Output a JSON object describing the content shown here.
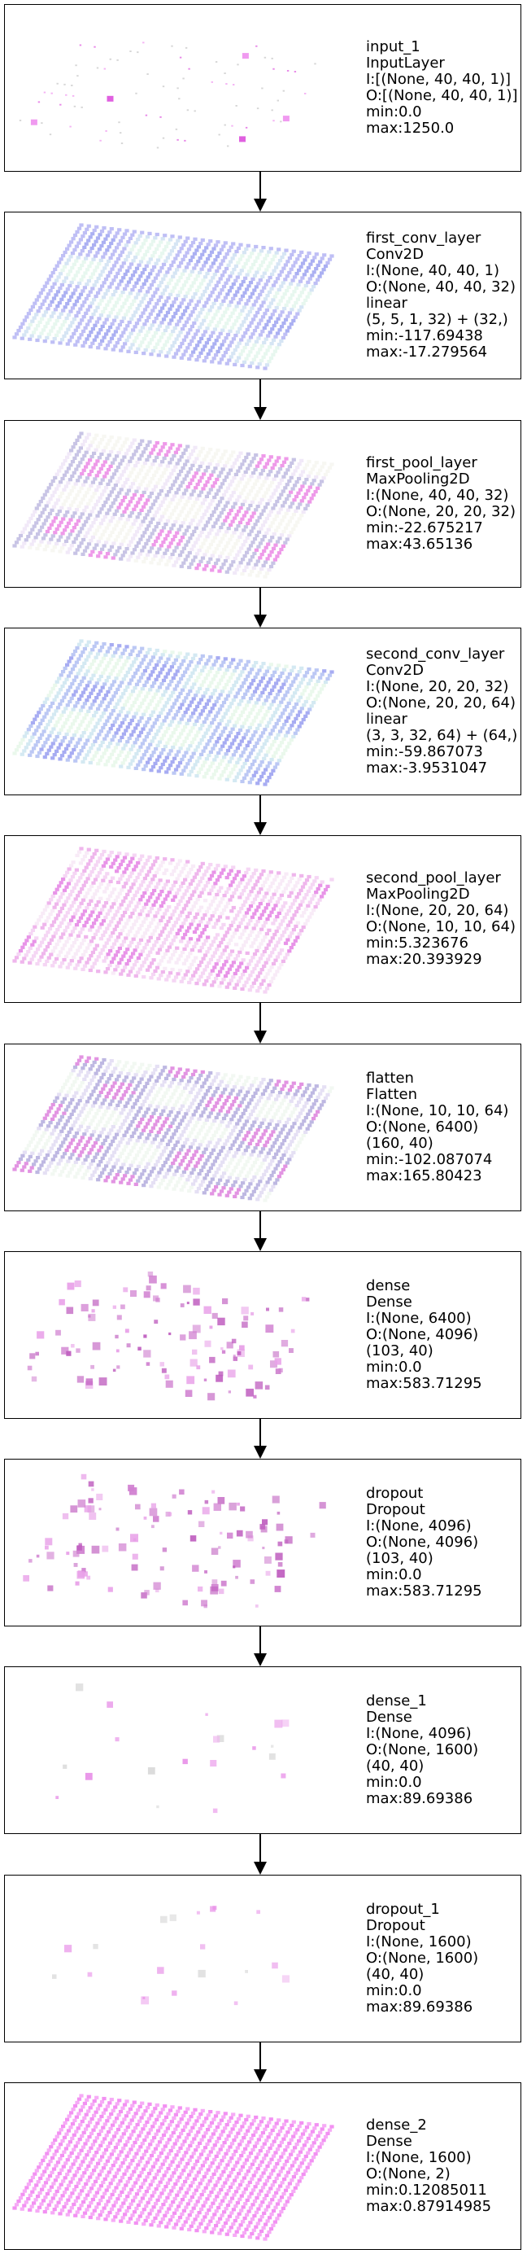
{
  "layers": [
    {
      "name": "input_1",
      "type": "InputLayer",
      "lines": [
        "I:[(None, 40, 40, 1)]",
        "O:[(None, 40, 40, 1)]"
      ],
      "min": "min:0.0",
      "max": "max:1250.0",
      "viz": {
        "style": "sparse-grid",
        "palette": [
          "#c8c8c8",
          "#f09af0",
          "#e060e0"
        ],
        "density": 0.18
      }
    },
    {
      "name": "first_conv_layer",
      "type": "Conv2D",
      "lines": [
        "I:(None, 40, 40, 1)",
        "O:(None, 40, 40, 32)",
        "linear",
        "(5, 5, 1, 32) + (32,)"
      ],
      "min": "min:-117.69438",
      "max": "max:-17.279564",
      "viz": {
        "style": "dense-grid",
        "palette": [
          "#a9a9f2",
          "#c8dcf0",
          "#dff4ea",
          "#8f95ee"
        ],
        "density": 1.0
      }
    },
    {
      "name": "first_pool_layer",
      "type": "MaxPooling2D",
      "lines": [
        "I:(None, 40, 40, 32)",
        "O:(None, 20, 20, 32)"
      ],
      "min": "min:-22.675217",
      "max": "max:43.65136",
      "viz": {
        "style": "dense-grid",
        "palette": [
          "#b5b0dc",
          "#ece2f6",
          "#f4f4ee",
          "#e878e2"
        ],
        "density": 1.0
      }
    },
    {
      "name": "second_conv_layer",
      "type": "Conv2D",
      "lines": [
        "I:(None, 20, 20, 32)",
        "O:(None, 20, 20, 64)",
        "linear",
        "(3, 3, 32, 64) + (64,)"
      ],
      "min": "min:-59.867073",
      "max": "max:-3.9531047",
      "viz": {
        "style": "dense-grid",
        "palette": [
          "#a6b6f0",
          "#c6e2ee",
          "#e3f6e6",
          "#8a90ee"
        ],
        "density": 1.0
      }
    },
    {
      "name": "second_pool_layer",
      "type": "MaxPooling2D",
      "lines": [
        "I:(None, 20, 20, 64)",
        "O:(None, 10, 10, 64)"
      ],
      "min": "min:5.323676",
      "max": "max:20.393929",
      "viz": {
        "style": "dense-grid",
        "palette": [
          "#f2c8f0",
          "#ea9ee6",
          "#f6e4f4",
          "#e070e0"
        ],
        "density": 0.96
      }
    },
    {
      "name": "flatten",
      "type": "Flatten",
      "lines": [
        "I:(None, 10, 10, 64)",
        "O:(None, 6400)",
        "(160, 40)"
      ],
      "min": "min:-102.087074",
      "max": "max:165.80423",
      "viz": {
        "style": "dense-grid",
        "palette": [
          "#a8a0d8",
          "#dcd6f0",
          "#eef6ee",
          "#d870d8"
        ],
        "density": 1.0
      }
    },
    {
      "name": "dense",
      "type": "Dense",
      "lines": [
        "I:(None, 6400)",
        "O:(None, 4096)",
        "(103, 40)"
      ],
      "min": "min:0.0",
      "max": "max:583.71295",
      "viz": {
        "style": "scatter",
        "palette": [
          "#c060c0",
          "#e8a0e8",
          "#d080d0"
        ],
        "count": 110
      }
    },
    {
      "name": "dropout",
      "type": "Dropout",
      "lines": [
        "I:(None, 4096)",
        "O:(None, 4096)",
        "(103, 40)"
      ],
      "min": "min:0.0",
      "max": "max:583.71295",
      "viz": {
        "style": "scatter",
        "palette": [
          "#c060c0",
          "#e8a0e8",
          "#d080d0"
        ],
        "count": 110
      }
    },
    {
      "name": "dense_1",
      "type": "Dense",
      "lines": [
        "I:(None, 4096)",
        "O:(None, 1600)",
        "(40, 40)"
      ],
      "min": "min:0.0",
      "max": "max:89.69386",
      "viz": {
        "style": "scatter",
        "palette": [
          "#d8d8d8",
          "#f0b8f0",
          "#e890e8"
        ],
        "count": 20
      }
    },
    {
      "name": "dropout_1",
      "type": "Dropout",
      "lines": [
        "I:(None, 1600)",
        "O:(None, 1600)",
        "(40, 40)"
      ],
      "min": "min:0.0",
      "max": "max:89.69386",
      "viz": {
        "style": "scatter",
        "palette": [
          "#d8d8d8",
          "#f0b8f0",
          "#e890e8"
        ],
        "count": 20
      }
    },
    {
      "name": "dense_2",
      "type": "Dense",
      "lines": [
        "I:(None, 1600)",
        "O:(None, 2)"
      ],
      "min": "min:0.12085011",
      "max": "max:0.87914985",
      "viz": {
        "style": "solid-grid",
        "palette": [
          "#f07ef0",
          "#f49cf4"
        ],
        "density": 1.0
      }
    }
  ]
}
